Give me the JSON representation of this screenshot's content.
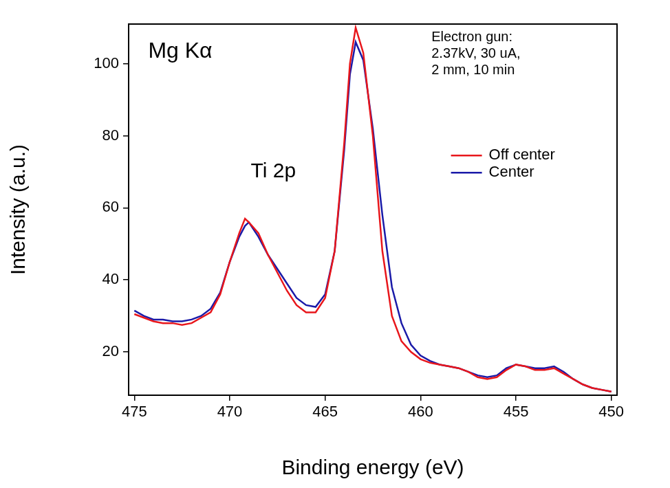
{
  "chart_data": {
    "type": "line",
    "x_label": "Binding energy (eV)",
    "y_label": "Intensity (a.u.)",
    "annotations": [
      {
        "text": "Mg Kα"
      },
      {
        "text": [
          "Electron gun:",
          "2.37kV, 30 uA,",
          "2 mm, 10 min"
        ]
      },
      {
        "text": "Ti 2p"
      }
    ],
    "xlim": [
      475.3,
      449.7
    ],
    "xticks": [
      475,
      470,
      465,
      460,
      455,
      450
    ],
    "ylim": [
      8,
      111
    ],
    "yticks": [
      20,
      40,
      60,
      80,
      100
    ],
    "grid": false,
    "legend": "upper right",
    "x": [
      475,
      474.5,
      474,
      473.5,
      473,
      472.5,
      472,
      471.5,
      471,
      470.5,
      470,
      469.5,
      469.2,
      469,
      468.5,
      468,
      467.5,
      467,
      466.5,
      466,
      465.5,
      465,
      464.5,
      464,
      463.7,
      463.4,
      463,
      462.5,
      462,
      461.5,
      461,
      460.5,
      460,
      459.5,
      459,
      458.5,
      458,
      457.5,
      457,
      456.5,
      456,
      455.5,
      455,
      454.5,
      454,
      453.5,
      453,
      452.5,
      452,
      451.5,
      451,
      450.5,
      450
    ],
    "series": [
      {
        "name": "Off center",
        "color": "#e8161b",
        "marker": "none",
        "line_style": "solid",
        "values": [
          30.5,
          29.5,
          28.5,
          28,
          28,
          27.5,
          28,
          29.5,
          31,
          36,
          45,
          53,
          57,
          56,
          53,
          47,
          42,
          37,
          33,
          31,
          31,
          35,
          48,
          78,
          100,
          110,
          103,
          80,
          48,
          30,
          23,
          20,
          18,
          17,
          16.5,
          16,
          15.5,
          14.5,
          13,
          12.5,
          13,
          15,
          16.5,
          16,
          15,
          15,
          15.5,
          14,
          12.5,
          11,
          10,
          9.5,
          9
        ]
      },
      {
        "name": "Center",
        "color": "#1a1aa8",
        "marker": "none",
        "line_style": "solid",
        "values": [
          31.5,
          30,
          29,
          29,
          28.5,
          28.5,
          29,
          30,
          32,
          36.5,
          45,
          52,
          55,
          56,
          52,
          47,
          43,
          39,
          35,
          33,
          32.5,
          36,
          48,
          76,
          97,
          106,
          101,
          82,
          58,
          38,
          28,
          22,
          19,
          17.5,
          16.5,
          16,
          15.5,
          14.5,
          13.5,
          13,
          13.5,
          15.5,
          16.5,
          16,
          15.5,
          15.5,
          16,
          14.5,
          12.5,
          11,
          10,
          9.5,
          9
        ]
      }
    ]
  }
}
